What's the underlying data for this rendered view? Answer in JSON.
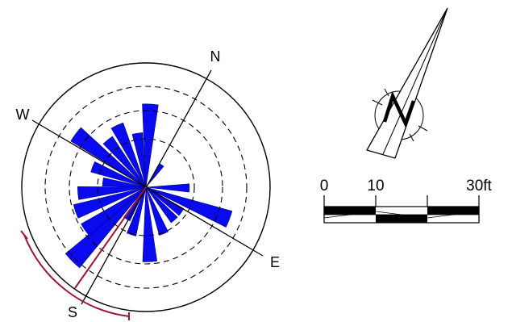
{
  "compass_labels": {
    "north": "N",
    "west": "W",
    "east": "E",
    "south": "S"
  },
  "scale_bar": {
    "tick_0": "0",
    "tick_10": "10",
    "tick_30": "30ft"
  },
  "north_arrow": {
    "letter": "N"
  },
  "colors": {
    "rose_petal_fill": "#0a0aee",
    "rose_petal_stroke": "#00007a",
    "mean_direction_line": "#9b1535",
    "confidence_arc": "#9b1535",
    "rings": "#000000"
  },
  "chart_data": {
    "type": "rose",
    "grid_rings": "dashed",
    "orientation_axes": [
      "N-S",
      "W-E"
    ],
    "petals": [
      {
        "direction_deg": 196,
        "relative_length": 0.84
      },
      {
        "direction_deg": 206,
        "relative_length": 0.6
      },
      {
        "direction_deg": 222,
        "relative_length": 0.6
      },
      {
        "direction_deg": 236,
        "relative_length": 0.55
      },
      {
        "direction_deg": 248,
        "relative_length": 0.35
      },
      {
        "direction_deg": 262,
        "relative_length": 0.46
      },
      {
        "direction_deg": 278,
        "relative_length": 0.71
      },
      {
        "direction_deg": 292,
        "relative_length": 0.49
      },
      {
        "direction_deg": 306,
        "relative_length": 0.55
      },
      {
        "direction_deg": 322,
        "relative_length": 0.44
      },
      {
        "direction_deg": 334,
        "relative_length": 0.67
      },
      {
        "direction_deg": 6,
        "relative_length": 0.22
      },
      {
        "direction_deg": 62,
        "relative_length": 0.35
      },
      {
        "direction_deg": 82,
        "relative_length": 0.72
      },
      {
        "direction_deg": 96,
        "relative_length": 0.35
      },
      {
        "direction_deg": 110,
        "relative_length": 0.35
      },
      {
        "direction_deg": 130,
        "relative_length": 0.4
      },
      {
        "direction_deg": 148,
        "relative_length": 0.6
      },
      {
        "direction_deg": 168,
        "relative_length": 0.4
      },
      {
        "direction_deg": 182,
        "relative_length": 0.3
      }
    ],
    "mean_direction_deg": 205
  }
}
